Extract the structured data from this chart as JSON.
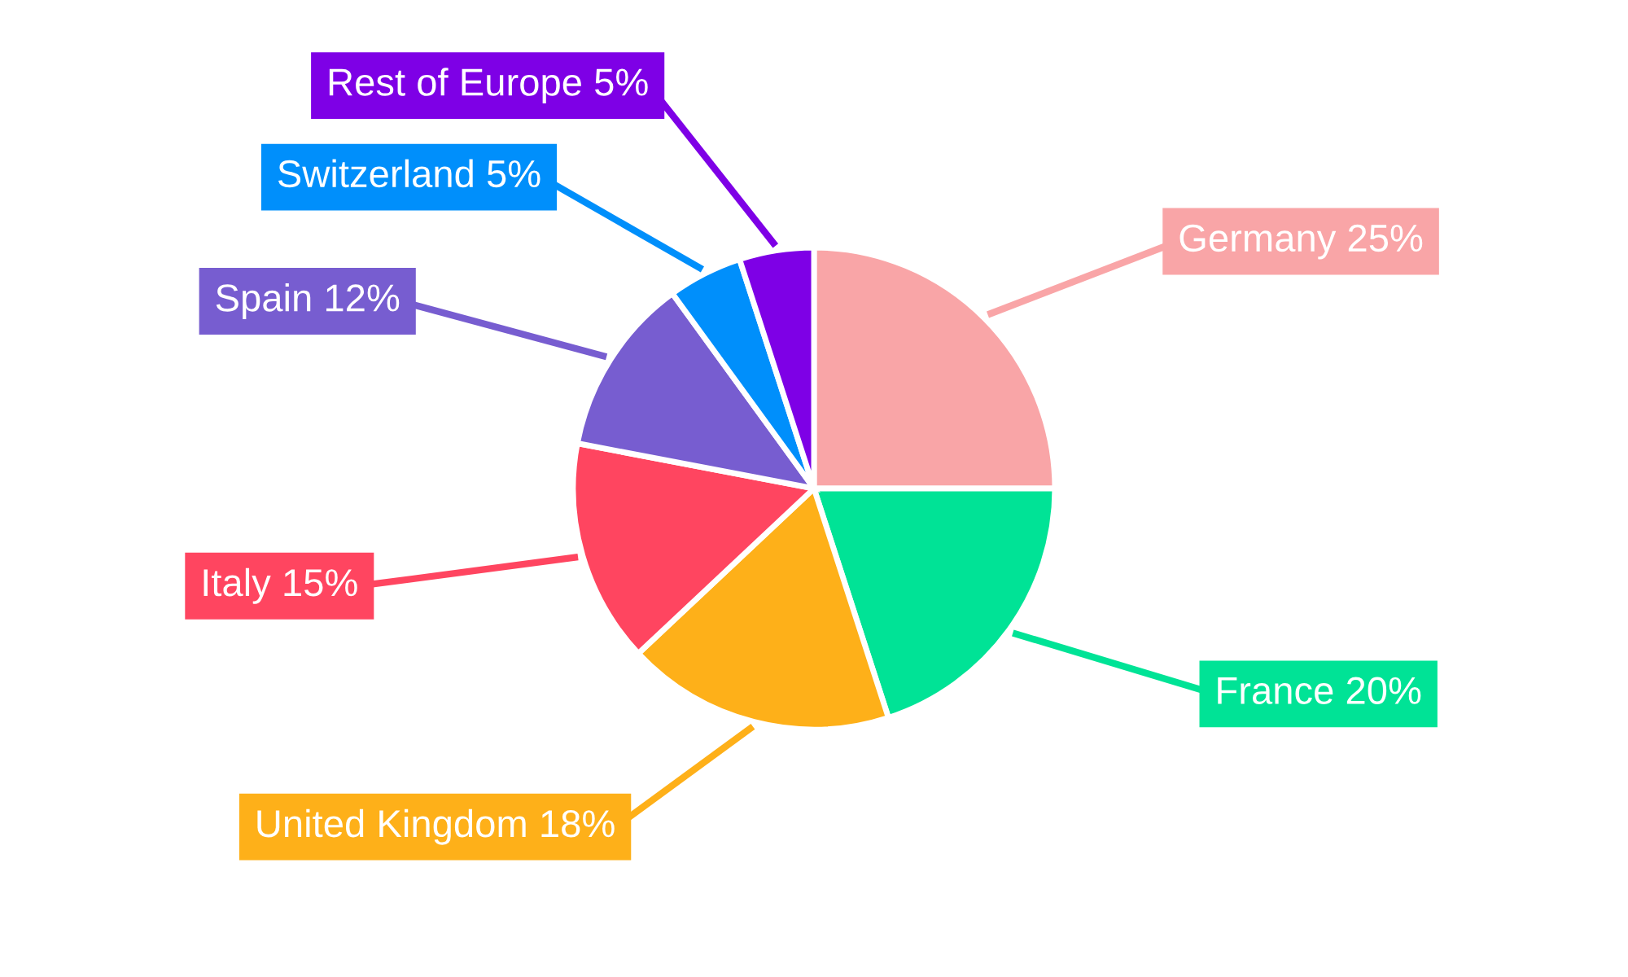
{
  "chart_data": {
    "type": "pie",
    "categories": [
      "Germany",
      "France",
      "United Kingdom",
      "Italy",
      "Spain",
      "Switzerland",
      "Rest of Europe"
    ],
    "values": [
      25,
      20,
      18,
      15,
      12,
      5,
      5
    ],
    "colors": [
      "#f9a5a7",
      "#00e396",
      "#feb019",
      "#ff4560",
      "#775dd0",
      "#008ffb",
      "#7e00e6"
    ],
    "value_labels": [
      "25%",
      "20%",
      "18%",
      "15%",
      "12%",
      "5%",
      "5%"
    ],
    "legend": false
  }
}
